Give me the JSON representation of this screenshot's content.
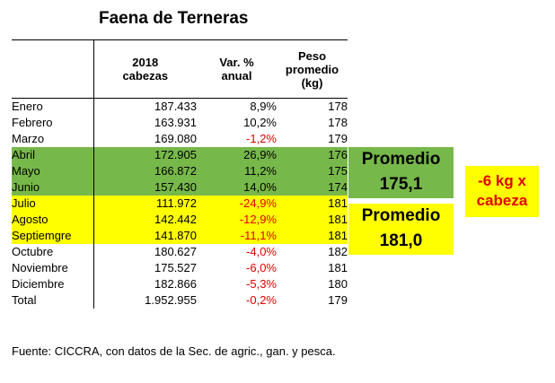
{
  "title": "Faena de Terneras",
  "headers": {
    "col1_line1": "2018",
    "col1_line2": "cabezas",
    "col2_line1": "Var. %",
    "col2_line2": "anual",
    "col3_line1": "Peso",
    "col3_line2": "promedio",
    "col3_line3": "(kg)"
  },
  "rows": [
    {
      "month": "Enero",
      "heads": "187.433",
      "var": "8,9%",
      "weight": "178"
    },
    {
      "month": "Febrero",
      "heads": "163.931",
      "var": "10,2%",
      "weight": "178"
    },
    {
      "month": "Marzo",
      "heads": "169.080",
      "var": "-1,2%",
      "weight": "179"
    },
    {
      "month": "Abril",
      "heads": "172.905",
      "var": "26,9%",
      "weight": "176"
    },
    {
      "month": "Mayo",
      "heads": "166.872",
      "var": "11,2%",
      "weight": "175"
    },
    {
      "month": "Junio",
      "heads": "157.430",
      "var": "14,0%",
      "weight": "174"
    },
    {
      "month": "Julio",
      "heads": "111.972",
      "var": "-24,9%",
      "weight": "181"
    },
    {
      "month": "Agosto",
      "heads": "142.442",
      "var": "-12,9%",
      "weight": "181"
    },
    {
      "month": "Septiemgre",
      "heads": "141.870",
      "var": "-11,1%",
      "weight": "181"
    },
    {
      "month": "Octubre",
      "heads": "180.627",
      "var": "-4,0%",
      "weight": "182"
    },
    {
      "month": "Noviembre",
      "heads": "175.527",
      "var": "-6,0%",
      "weight": "181"
    },
    {
      "month": "Diciembre",
      "heads": "182.866",
      "var": "-5,3%",
      "weight": "180"
    },
    {
      "month": "Total",
      "heads": "1.952.955",
      "var": "-0,2%",
      "weight": "179"
    }
  ],
  "promedio_green": {
    "label": "Promedio",
    "value": "175,1"
  },
  "promedio_yellow": {
    "label": "Promedio",
    "value": "181,0"
  },
  "diff": {
    "line1": "-6 kg x",
    "line2": "cabeza"
  },
  "source": "Fuente: CICCRA, con datos de la Sec. de agric., gan. y pesca.",
  "colors": {
    "green": "#77b84a",
    "yellow": "#ffff00",
    "negative": "#e00000"
  }
}
